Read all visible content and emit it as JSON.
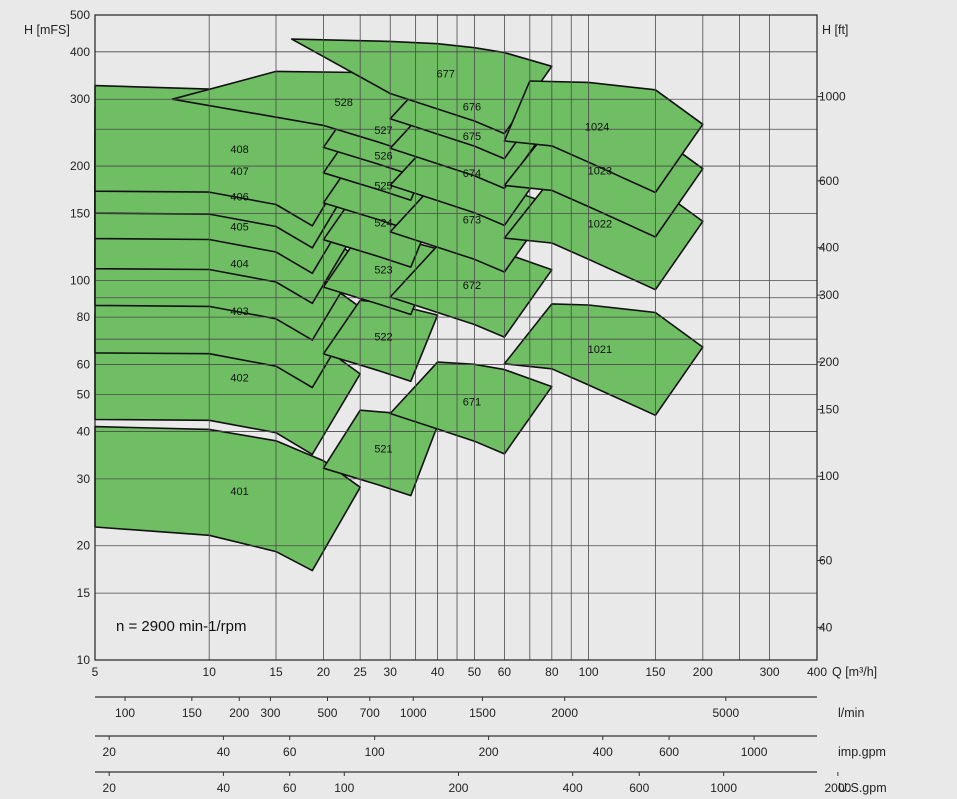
{
  "chart_data": {
    "type": "area",
    "x_axis": {
      "label": "Q [m³/h]",
      "scale": "log",
      "range": [
        5,
        400
      ],
      "ticks": [
        5,
        10,
        15,
        20,
        25,
        30,
        40,
        50,
        60,
        80,
        100,
        150,
        200,
        300,
        400
      ],
      "gridlines": [
        5,
        10,
        15,
        20,
        25,
        30,
        35,
        40,
        45,
        50,
        60,
        70,
        80,
        90,
        100,
        150,
        200,
        250,
        300,
        400
      ]
    },
    "y_axis_left": {
      "label": "H [mFS]",
      "scale": "log",
      "range": [
        10,
        500
      ],
      "ticks": [
        10,
        15,
        20,
        30,
        40,
        50,
        60,
        80,
        100,
        150,
        200,
        300,
        400,
        500
      ],
      "gridlines": [
        15,
        20,
        30,
        40,
        50,
        60,
        70,
        80,
        90,
        100,
        150,
        200,
        250,
        300,
        400,
        500
      ]
    },
    "y_axis_right": {
      "label": "H [ft]",
      "ticks": [
        "40",
        "60",
        "100",
        "150",
        "200",
        "300",
        "400",
        "600",
        "1000"
      ],
      "tick_values_m": [
        12.19,
        18.29,
        30.48,
        45.72,
        60.96,
        91.44,
        121.92,
        182.88,
        304.8
      ]
    },
    "secondary_scales": [
      {
        "label": "l/min",
        "ticks": [
          "100",
          "150",
          "200",
          "300",
          "500",
          "700",
          "1000",
          "1500",
          "2000",
          "5000"
        ],
        "tick_q": [
          6.0,
          9.0,
          12.0,
          14.5,
          20.5,
          26.5,
          34.5,
          52.5,
          86.5,
          230
        ]
      },
      {
        "label": "imp.gpm",
        "ticks": [
          "20",
          "40",
          "60",
          "100",
          "200",
          "400",
          "600",
          "1000"
        ],
        "tick_q": [
          5.45,
          10.9,
          16.3,
          27.3,
          54.5,
          109,
          163,
          273
        ]
      },
      {
        "label": "U.S.gpm",
        "ticks": [
          "20",
          "40",
          "60",
          "100",
          "200",
          "400",
          "600",
          "1000",
          "2000"
        ],
        "tick_q": [
          5.45,
          10.9,
          16.3,
          22.7,
          45.4,
          90.8,
          136,
          227,
          454
        ]
      }
    ],
    "annotation": "n  =  2900  min-1/rpm",
    "regions": [
      {
        "label": "401",
        "polygon": [
          [
            5,
            41.2
          ],
          [
            10,
            40.5
          ],
          [
            15,
            37.8
          ],
          [
            20,
            33.5
          ],
          [
            25,
            28.5
          ],
          [
            18.7,
            17.2
          ],
          [
            15,
            19.3
          ],
          [
            10,
            21.3
          ],
          [
            5,
            22.4
          ]
        ]
      },
      {
        "label": "402",
        "polygon": [
          [
            5,
            81.4
          ],
          [
            10,
            79.8
          ],
          [
            15,
            74.8
          ],
          [
            20,
            66.6
          ],
          [
            25,
            56.7
          ],
          [
            18.7,
            34.8
          ],
          [
            15,
            39.7
          ],
          [
            10,
            42.8
          ],
          [
            5,
            43.0
          ]
        ]
      },
      {
        "label": "403",
        "polygon": [
          [
            5,
            122.2
          ],
          [
            10,
            119.6
          ],
          [
            15,
            112.1
          ],
          [
            20,
            99.8
          ],
          [
            25,
            84.9
          ],
          [
            18.7,
            52.2
          ],
          [
            15,
            59.4
          ],
          [
            10,
            64.1
          ],
          [
            5,
            64.4
          ]
        ]
      },
      {
        "label": "404",
        "polygon": [
          [
            5,
            162.9
          ],
          [
            10,
            159.5
          ],
          [
            15,
            149.5
          ],
          [
            20,
            133.0
          ],
          [
            25,
            113.1
          ],
          [
            18.7,
            69.6
          ],
          [
            15,
            79.2
          ],
          [
            10,
            85.4
          ],
          [
            5,
            85.9
          ]
        ]
      },
      {
        "label": "405",
        "polygon": [
          [
            5,
            203.6
          ],
          [
            10,
            199.3
          ],
          [
            15,
            186.9
          ],
          [
            20,
            166.3
          ],
          [
            25,
            141.4
          ],
          [
            18.7,
            87.0
          ],
          [
            15,
            99.0
          ],
          [
            10,
            106.8
          ],
          [
            5,
            107.3
          ]
        ]
      },
      {
        "label": "406",
        "polygon": [
          [
            5,
            244.3
          ],
          [
            10,
            239.2
          ],
          [
            15,
            224.3
          ],
          [
            20,
            199.6
          ],
          [
            25,
            169.7
          ],
          [
            18.7,
            104.4
          ],
          [
            15,
            118.8
          ],
          [
            10,
            128.1
          ],
          [
            5,
            128.8
          ]
        ]
      },
      {
        "label": "407",
        "polygon": [
          [
            5,
            285.0
          ],
          [
            10,
            279.0
          ],
          [
            15,
            261.6
          ],
          [
            20,
            232.9
          ],
          [
            25,
            198.0
          ],
          [
            18.7,
            121.8
          ],
          [
            15,
            138.6
          ],
          [
            10,
            149.5
          ],
          [
            5,
            150.3
          ]
        ]
      },
      {
        "label": "408",
        "polygon": [
          [
            5,
            325.8
          ],
          [
            10,
            318.9
          ],
          [
            15,
            299.0
          ],
          [
            20,
            266.1
          ],
          [
            25,
            226.3
          ],
          [
            18.7,
            139.2
          ],
          [
            15,
            158.4
          ],
          [
            10,
            170.8
          ],
          [
            5,
            171.7
          ]
        ]
      },
      {
        "label": "521",
        "polygon": [
          [
            25,
            45.5
          ],
          [
            30,
            44.8
          ],
          [
            40,
            41.5
          ],
          [
            34,
            27.1
          ],
          [
            28,
            28.9
          ],
          [
            20,
            32.0
          ]
        ]
      },
      {
        "label": "522",
        "polygon": [
          [
            25,
            88.6
          ],
          [
            30,
            87.0
          ],
          [
            40,
            81.0
          ],
          [
            34,
            54.2
          ],
          [
            28,
            57.8
          ],
          [
            20,
            64.0
          ]
        ]
      },
      {
        "label": "523",
        "polygon": [
          [
            25,
            132.8
          ],
          [
            30,
            130.6
          ],
          [
            40,
            121.0
          ],
          [
            34,
            81.3
          ],
          [
            28,
            86.6
          ],
          [
            20,
            96.0
          ]
        ]
      },
      {
        "label": "524",
        "polygon": [
          [
            25,
            176.4
          ],
          [
            30,
            173.4
          ],
          [
            40,
            160.9
          ],
          [
            34,
            108.4
          ],
          [
            28,
            115.5
          ],
          [
            20,
            128.0
          ]
        ]
      },
      {
        "label": "525",
        "polygon": [
          [
            25,
            221.1
          ],
          [
            30,
            217.4
          ],
          [
            40,
            201.6
          ],
          [
            34,
            135.5
          ],
          [
            28,
            144.4
          ],
          [
            20,
            160.0
          ]
        ]
      },
      {
        "label": "526",
        "polygon": [
          [
            25,
            264.5
          ],
          [
            30,
            260.1
          ],
          [
            40,
            240.9
          ],
          [
            34,
            162.6
          ],
          [
            28,
            173.3
          ],
          [
            20,
            192.0
          ]
        ]
      },
      {
        "label": "527",
        "polygon": [
          [
            25,
            309.0
          ],
          [
            30,
            303.8
          ],
          [
            40,
            281.5
          ],
          [
            34,
            189.7
          ],
          [
            28,
            202.2
          ],
          [
            20,
            224.0
          ]
        ]
      },
      {
        "label": "528",
        "polygon": [
          [
            15,
            355.1
          ],
          [
            25,
            352.7
          ],
          [
            30,
            346.9
          ],
          [
            40,
            321.4
          ],
          [
            34,
            216.8
          ],
          [
            28,
            231.1
          ],
          [
            20,
            256.0
          ],
          [
            8,
            300.0
          ]
        ]
      },
      {
        "label": "671",
        "polygon": [
          [
            40,
            60.9
          ],
          [
            50,
            60.1
          ],
          [
            60,
            58.2
          ],
          [
            80,
            52.5
          ],
          [
            60,
            34.9
          ],
          [
            50,
            37.7
          ],
          [
            40,
            40.6
          ],
          [
            30,
            44.6
          ]
        ]
      },
      {
        "label": "672",
        "polygon": [
          [
            40,
            123.5
          ],
          [
            50,
            121.9
          ],
          [
            60,
            118.0
          ],
          [
            80,
            106.6
          ],
          [
            60,
            70.9
          ],
          [
            50,
            76.5
          ],
          [
            40,
            82.3
          ],
          [
            30,
            90.4
          ]
        ]
      },
      {
        "label": "673",
        "polygon": [
          [
            40,
            183.4
          ],
          [
            50,
            181.0
          ],
          [
            60,
            175.3
          ],
          [
            80,
            158.2
          ],
          [
            60,
            105.2
          ],
          [
            50,
            113.6
          ],
          [
            40,
            122.2
          ],
          [
            30,
            134.2
          ]
        ]
      },
      {
        "label": "674",
        "polygon": [
          [
            40,
            243.3
          ],
          [
            50,
            240.1
          ],
          [
            60,
            232.5
          ],
          [
            80,
            209.9
          ],
          [
            60,
            139.6
          ],
          [
            50,
            150.7
          ],
          [
            40,
            162.2
          ],
          [
            30,
            178.1
          ]
        ]
      },
      {
        "label": "675",
        "polygon": [
          [
            40,
            304.4
          ],
          [
            50,
            300.4
          ],
          [
            60,
            290.9
          ],
          [
            80,
            262.6
          ],
          [
            60,
            174.7
          ],
          [
            50,
            188.6
          ],
          [
            40,
            202.9
          ],
          [
            30,
            222.8
          ]
        ]
      },
      {
        "label": "676",
        "polygon": [
          [
            40,
            364.3
          ],
          [
            50,
            359.5
          ],
          [
            60,
            348.1
          ],
          [
            80,
            314.3
          ],
          [
            60,
            209.1
          ],
          [
            50,
            225.7
          ],
          [
            40,
            242.8
          ],
          [
            30,
            266.6
          ]
        ]
      },
      {
        "label": "677",
        "polygon": [
          [
            16.5,
            432.0
          ],
          [
            30,
            426.0
          ],
          [
            40,
            420.0
          ],
          [
            50,
            410.0
          ],
          [
            60,
            398.0
          ],
          [
            80,
            366.3
          ],
          [
            60,
            243.5
          ],
          [
            50,
            262.9
          ],
          [
            40,
            282.8
          ],
          [
            30,
            310.6
          ]
        ]
      },
      {
        "label": "1021",
        "polygon": [
          [
            80,
            86.7
          ],
          [
            100,
            86.1
          ],
          [
            150,
            82.3
          ],
          [
            200,
            66.7
          ],
          [
            150,
            44.1
          ],
          [
            100,
            53.0
          ],
          [
            80,
            58.5
          ],
          [
            60,
            60.3
          ]
        ]
      },
      {
        "label": "1022",
        "polygon": [
          [
            80,
            185.8
          ],
          [
            100,
            184.4
          ],
          [
            150,
            176.3
          ],
          [
            200,
            143.0
          ],
          [
            150,
            94.5
          ],
          [
            100,
            113.6
          ],
          [
            80,
            125.4
          ],
          [
            60,
            129.2
          ]
        ]
      },
      {
        "label": "1023",
        "polygon": [
          [
            80,
            255.8
          ],
          [
            100,
            253.9
          ],
          [
            150,
            242.7
          ],
          [
            200,
            196.8
          ],
          [
            150,
            130.1
          ],
          [
            100,
            156.4
          ],
          [
            80,
            172.6
          ],
          [
            60,
            177.9
          ]
        ]
      },
      {
        "label": "1024",
        "polygon": [
          [
            70,
            335.0
          ],
          [
            100,
            332.3
          ],
          [
            150,
            317.7
          ],
          [
            200,
            257.6
          ],
          [
            150,
            170.4
          ],
          [
            100,
            204.8
          ],
          [
            80,
            226.0
          ],
          [
            60,
            232.9
          ]
        ]
      }
    ]
  }
}
